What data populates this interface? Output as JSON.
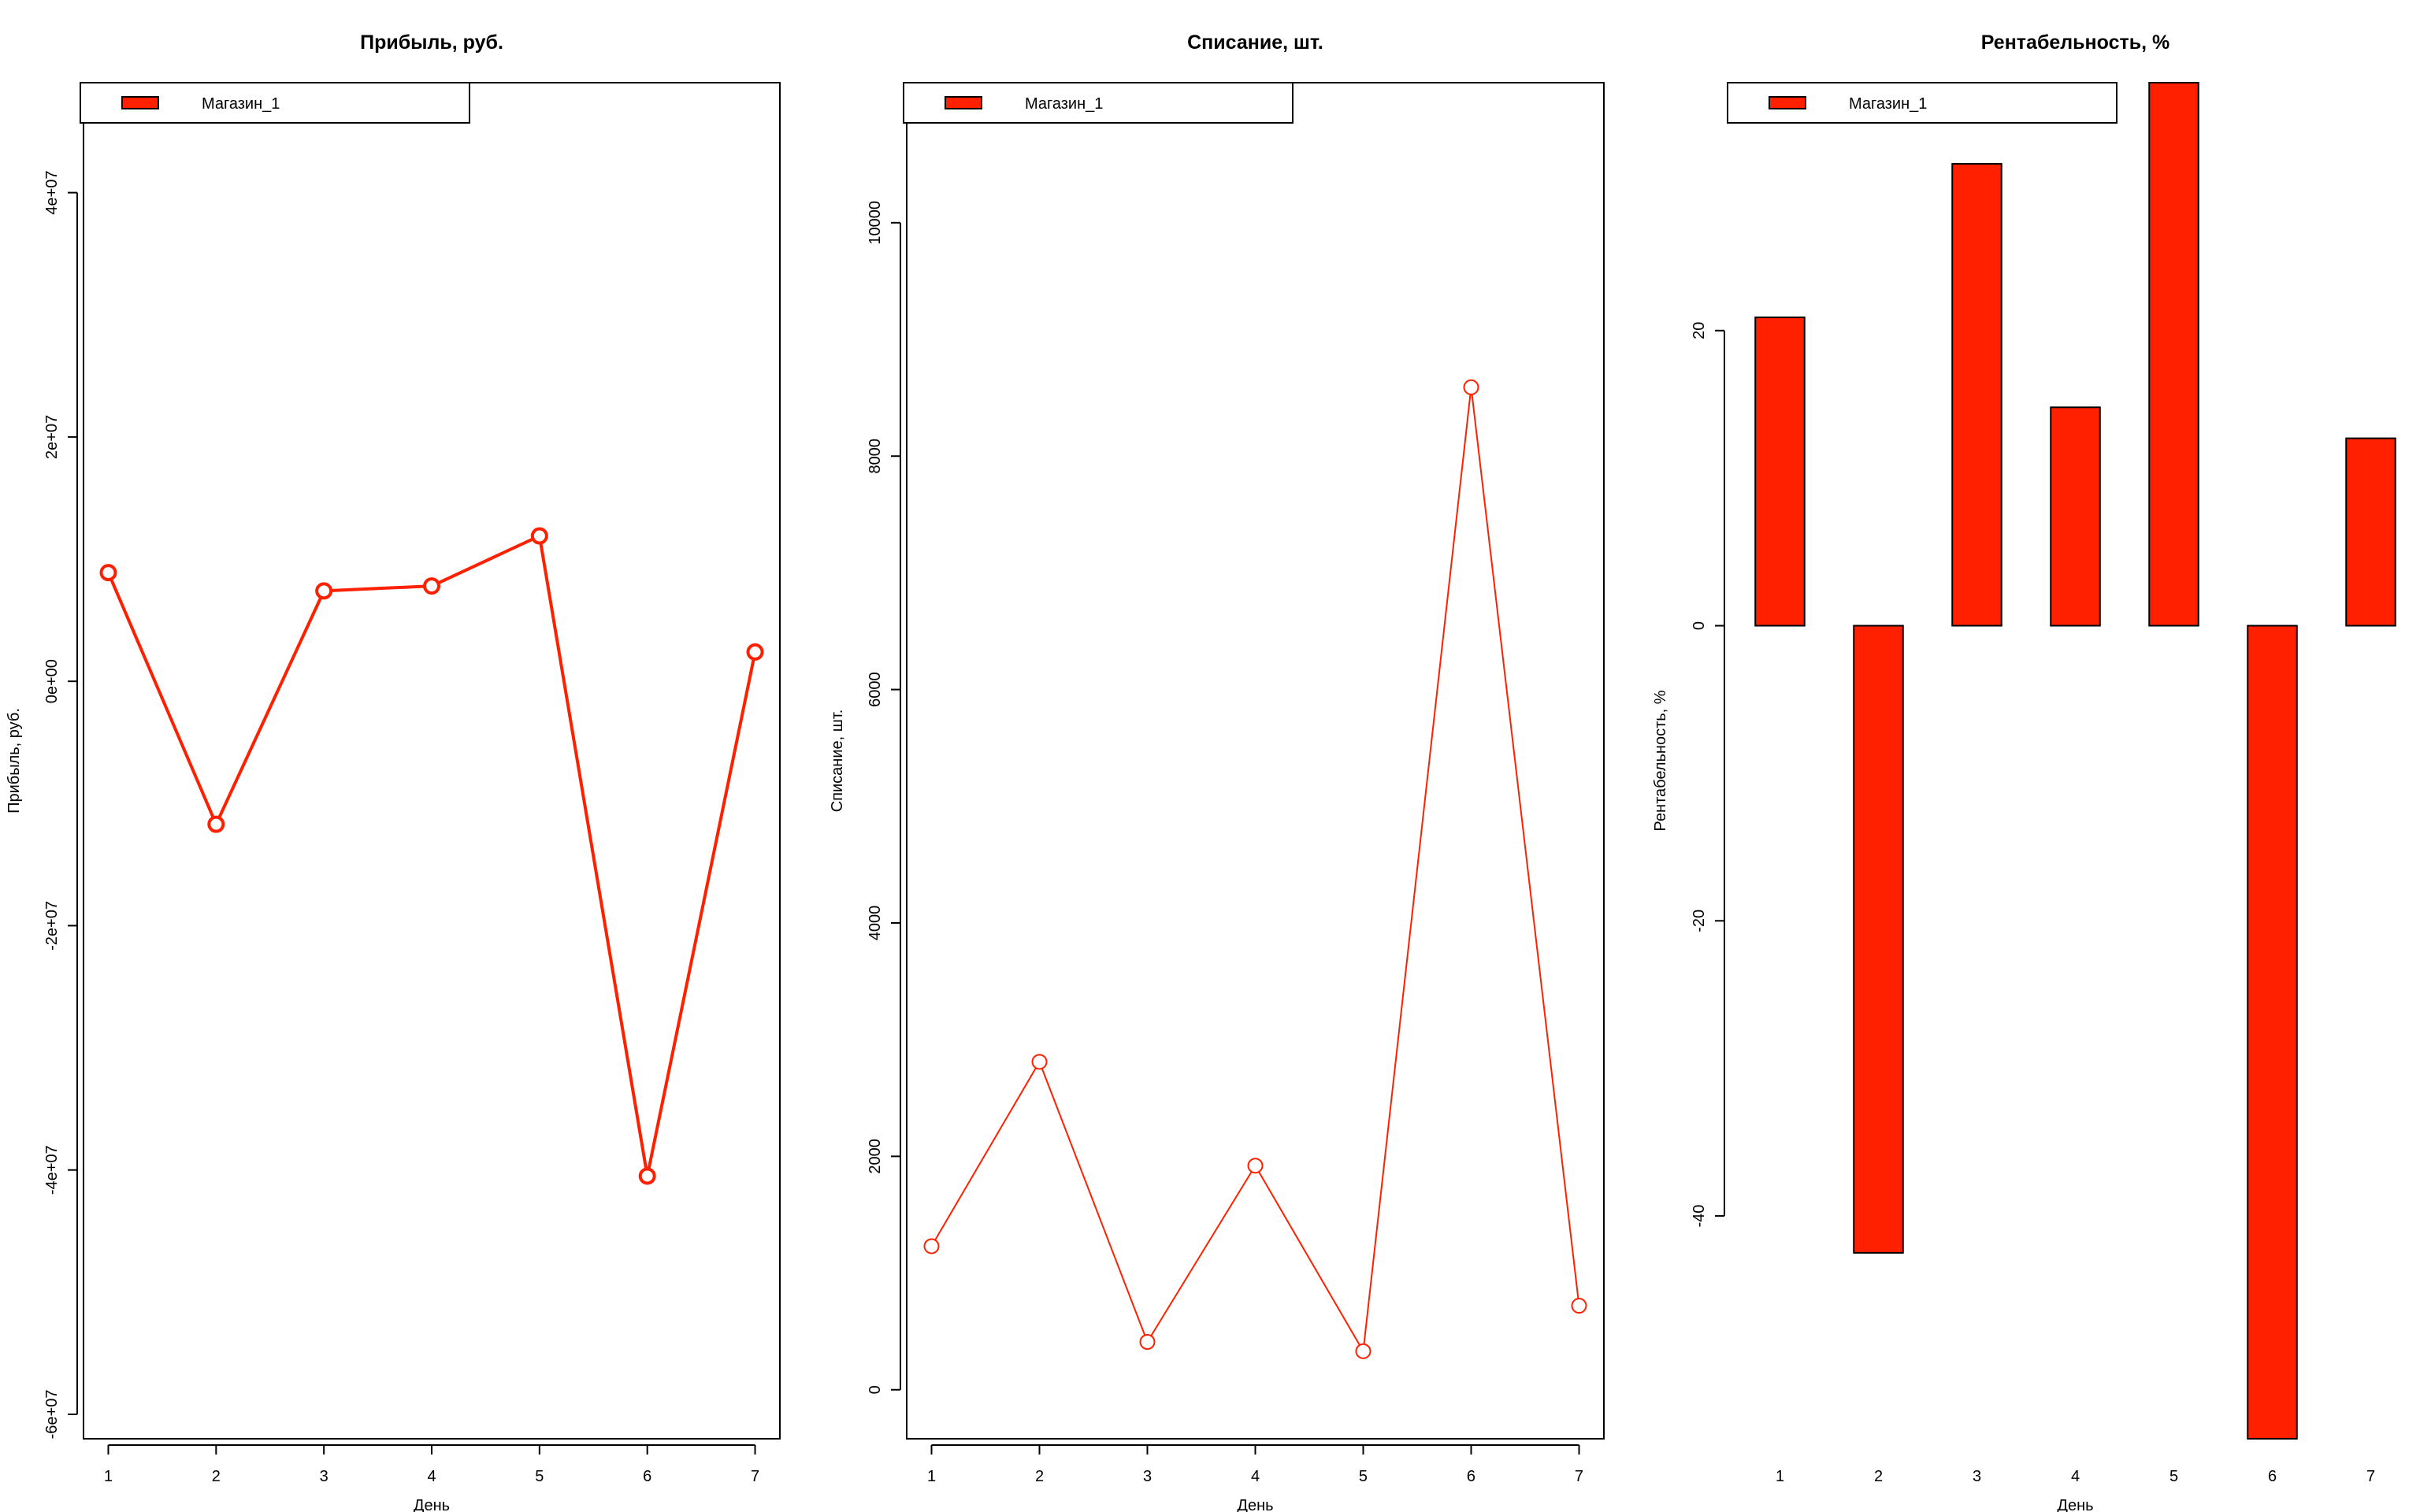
{
  "chart_data": [
    {
      "type": "line",
      "title": "Прибыль, руб.",
      "xlabel": "День",
      "ylabel": "Прибыль, руб.",
      "x": [
        1,
        2,
        3,
        4,
        5,
        6,
        7
      ],
      "series": [
        {
          "name": "Магазин_1",
          "values": [
            8900000,
            -11700000,
            7400000,
            7800000,
            11900000,
            -40500000,
            2400000
          ],
          "color": "#ff2000"
        }
      ],
      "xlim": [
        0.77,
        7.23
      ],
      "ylim": [
        -62000000,
        49000000
      ],
      "xticks": [
        1,
        2,
        3,
        4,
        5,
        6,
        7
      ],
      "yticks": [
        -60000000,
        -40000000,
        -20000000,
        0,
        20000000,
        40000000
      ],
      "ytick_labels": [
        "-6e+07",
        "-4e+07",
        "-2e+07",
        "0e+00",
        "2e+07",
        "4e+07"
      ],
      "legend": "top-left",
      "grid": false
    },
    {
      "type": "line",
      "title": "Списание, шт.",
      "xlabel": "День",
      "ylabel": "Списание, шт.",
      "x": [
        1,
        2,
        3,
        4,
        5,
        6,
        7
      ],
      "series": [
        {
          "name": "Магазин_1",
          "values": [
            1230,
            2810,
            410,
            1920,
            330,
            8590,
            720
          ],
          "color": "#ff2000"
        }
      ],
      "xlim": [
        0.77,
        7.23
      ],
      "ylim": [
        -420,
        11200
      ],
      "xticks": [
        1,
        2,
        3,
        4,
        5,
        6,
        7
      ],
      "yticks": [
        0,
        2000,
        4000,
        6000,
        8000,
        10000
      ],
      "ytick_labels": [
        "0",
        "2000",
        "4000",
        "6000",
        "8000",
        "10000"
      ],
      "legend": "top-left",
      "grid": false
    },
    {
      "type": "bar",
      "title": "Рентабельность, %",
      "xlabel": "День",
      "ylabel": "Рентабельность, %",
      "categories": [
        "1",
        "2",
        "3",
        "4",
        "5",
        "6",
        "7"
      ],
      "series": [
        {
          "name": "Магазин_1",
          "values": [
            20.9,
            -42.5,
            31.3,
            14.8,
            36.8,
            -55.1,
            12.7
          ],
          "color": "#ff2000"
        }
      ],
      "ylim": [
        -55.1,
        36.8
      ],
      "yticks": [
        -40,
        -20,
        0,
        20
      ],
      "ytick_labels": [
        "-40",
        "-20",
        "0",
        "20"
      ],
      "legend": "top-left",
      "grid": false
    }
  ]
}
